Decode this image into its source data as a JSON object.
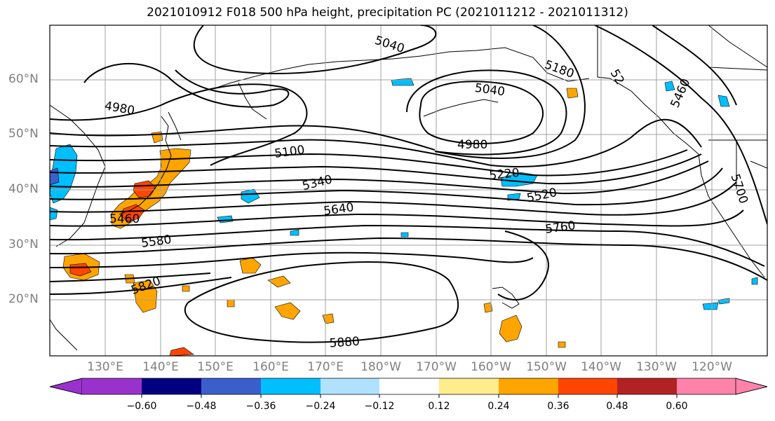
{
  "title": "2021010912 F018 500 hPa height, precipitation PC (2021011212 - 2021011312)",
  "lat_labels": [
    "60°N",
    "50°N",
    "40°N",
    "30°N",
    "20°N"
  ],
  "lon_labels": [
    "130°E",
    "140°E",
    "150°E",
    "160°E",
    "170°E",
    "180°W",
    "170°W",
    "160°W",
    "150°W",
    "140°W",
    "130°W",
    "120°W"
  ],
  "contour_labels": [
    "5040",
    "5040",
    "4980",
    "4980",
    "5100",
    "5180",
    "52",
    "5460",
    "5220",
    "5340",
    "5520",
    "5640",
    "5460",
    "5580",
    "5760",
    "5700",
    "5820",
    "5880"
  ],
  "colorbar": {
    "ticks": [
      "−0.60",
      "−0.48",
      "−0.36",
      "−0.24",
      "−0.12",
      "0.12",
      "0.24",
      "0.36",
      "0.48",
      "0.60"
    ],
    "colors": [
      "#9932CC",
      "#000080",
      "#3A5FCD",
      "#00BFFF",
      "#B0E2FF",
      "#FFFFFF",
      "#FFEC8B",
      "#FFA500",
      "#FF4500",
      "#B22222",
      "#FF82AB"
    ]
  },
  "colors": {
    "positive_precip": "#FFA500",
    "strong_positive": "#FF4500",
    "negative_precip": "#00BFFF",
    "contour": "#000000",
    "grid": "#A0A0A0"
  }
}
